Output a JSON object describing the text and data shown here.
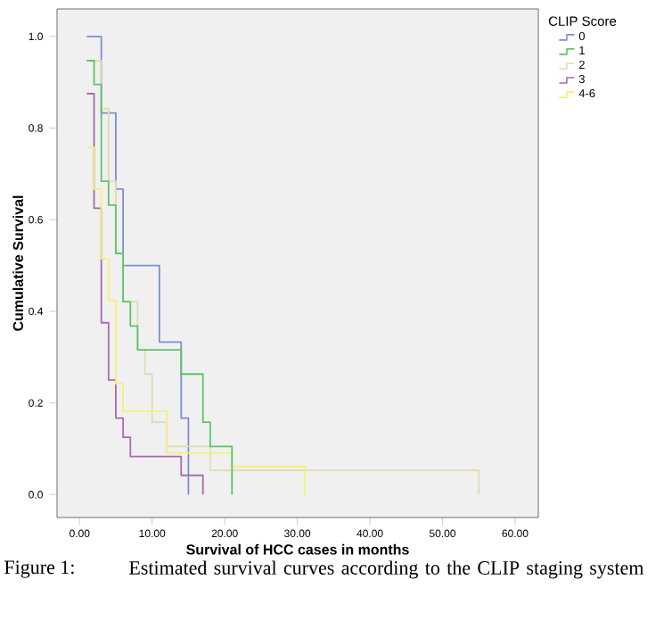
{
  "chart_data": {
    "type": "step",
    "xlabel": "Survival of HCC cases in months",
    "ylabel": "Cumulative Survival",
    "legend_title": "CLIP Score",
    "legend": "top right",
    "grid": false,
    "marker": "none",
    "line_style": "solid",
    "xlim": [
      -3.1,
      63.2
    ],
    "ylim": [
      -0.05,
      1.06
    ],
    "xticks": [
      {
        "value": 0,
        "label": "0.00"
      },
      {
        "value": 10,
        "label": "10.00"
      },
      {
        "value": 20,
        "label": "20.00"
      },
      {
        "value": 30,
        "label": "30.00"
      },
      {
        "value": 40,
        "label": "40.00"
      },
      {
        "value": 50,
        "label": "50.00"
      },
      {
        "value": 60,
        "label": "60.00"
      }
    ],
    "yticks": [
      {
        "value": 0,
        "label": "0.0"
      },
      {
        "value": 0.2,
        "label": "0.2"
      },
      {
        "value": 0.4,
        "label": "0.4"
      },
      {
        "value": 0.6,
        "label": "0.6"
      },
      {
        "value": 0.8,
        "label": "0.8"
      },
      {
        "value": 1.0,
        "label": "1.0"
      }
    ],
    "series": [
      {
        "name": "0",
        "color": "#7b8fd0",
        "x": [
          1,
          3,
          5,
          6,
          11,
          14,
          15
        ],
        "values": [
          1.0,
          0.833,
          0.667,
          0.5,
          0.333,
          0.167,
          0
        ]
      },
      {
        "name": "1",
        "color": "#5dc36b",
        "x": [
          1,
          2,
          3,
          4,
          5,
          6,
          7,
          8,
          14,
          17,
          18,
          21
        ],
        "values": [
          0.947,
          0.895,
          0.684,
          0.632,
          0.526,
          0.421,
          0.368,
          0.316,
          0.263,
          0.158,
          0.105,
          0
        ]
      },
      {
        "name": "2",
        "color": "#e0dcb0",
        "x": [
          1,
          3,
          4,
          5,
          6,
          8,
          9,
          10,
          12,
          18,
          55
        ],
        "values": [
          0.947,
          0.842,
          0.684,
          0.526,
          0.421,
          0.316,
          0.263,
          0.158,
          0.105,
          0.053,
          0
        ]
      },
      {
        "name": "3",
        "color": "#a86bb0",
        "x": [
          1,
          2,
          3,
          4,
          5,
          6,
          7,
          14,
          17
        ],
        "values": [
          0.875,
          0.625,
          0.375,
          0.25,
          0.167,
          0.125,
          0.083,
          0.042,
          0
        ]
      },
      {
        "name": "4-6",
        "color": "#f5f07a",
        "x": [
          1,
          2,
          3,
          4,
          5,
          6,
          12,
          21,
          31
        ],
        "values": [
          0.758,
          0.667,
          0.515,
          0.424,
          0.242,
          0.182,
          0.091,
          0.061,
          0
        ]
      }
    ],
    "annotations": [
      "Figure 1:",
      "Estimated survival curves according to the CLIP staging system"
    ]
  }
}
